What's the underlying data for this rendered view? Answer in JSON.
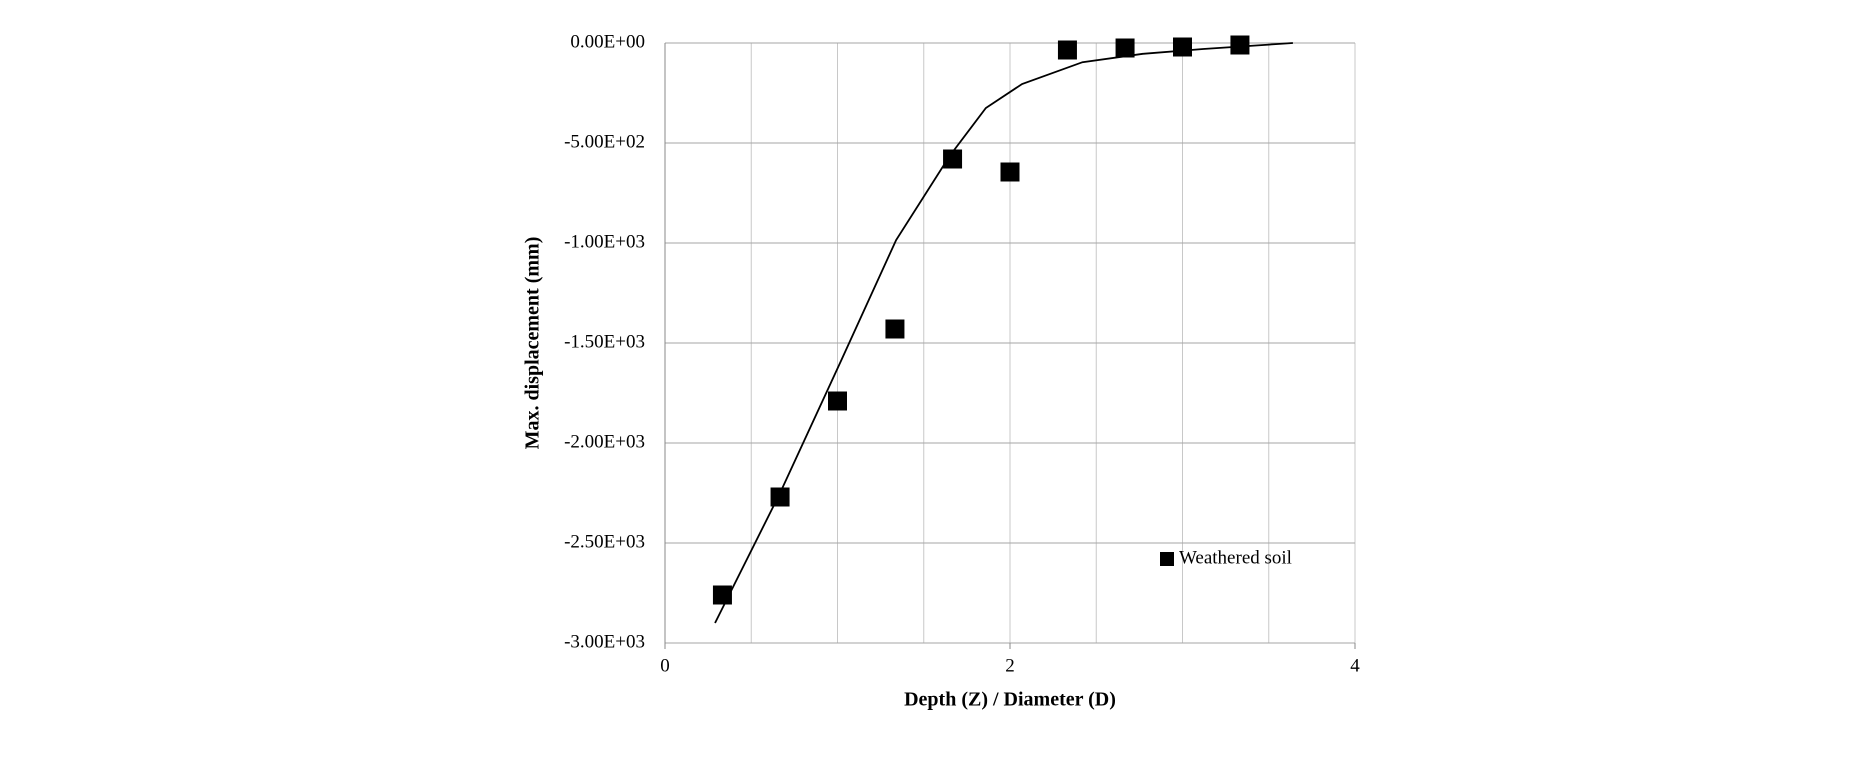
{
  "chart_data": {
    "type": "scatter",
    "x_label": "Depth (Z) / Diameter (D)",
    "y_label": "Max. displacement (mm)",
    "series": [
      {
        "name": "Weathered soil",
        "color": "#000000",
        "x": [
          0.333,
          0.667,
          1,
          1.333,
          1.667,
          2,
          2.333,
          2.667,
          3,
          3.333
        ],
        "values": [
          -2760,
          -2270,
          -1790,
          -1430,
          -580,
          -645,
          -35,
          -25,
          -20,
          -10
        ]
      }
    ],
    "trendline": {
      "color": "#000000",
      "x": [
        0.29,
        0.667,
        1.02,
        1.34,
        1.65,
        1.86,
        2.07,
        2.42,
        2.77,
        3.12,
        3.64
      ],
      "values": [
        -2900,
        -2250,
        -1590,
        -985,
        -565,
        -325,
        -205,
        -96,
        -54,
        -30,
        0
      ]
    },
    "xlim": [
      0,
      4
    ],
    "xticks": [
      0,
      2,
      4
    ],
    "x_gridlines": [
      0.5,
      1,
      1.5,
      2,
      2.5,
      3,
      3.5,
      4
    ],
    "ylim": [
      -3000,
      0
    ],
    "yticks": [
      {
        "value": -3000,
        "label": "-3.00E+03"
      },
      {
        "value": -2500,
        "label": "-2.50E+03"
      },
      {
        "value": -2000,
        "label": "-2.00E+03"
      },
      {
        "value": -1500,
        "label": "-1.50E+03"
      },
      {
        "value": -1000,
        "label": "-1.00E+03"
      },
      {
        "value": -500,
        "label": "-5.00E+02"
      },
      {
        "value": 0,
        "label": "0.00E+00"
      }
    ],
    "grid": true,
    "legend": "lower right"
  }
}
